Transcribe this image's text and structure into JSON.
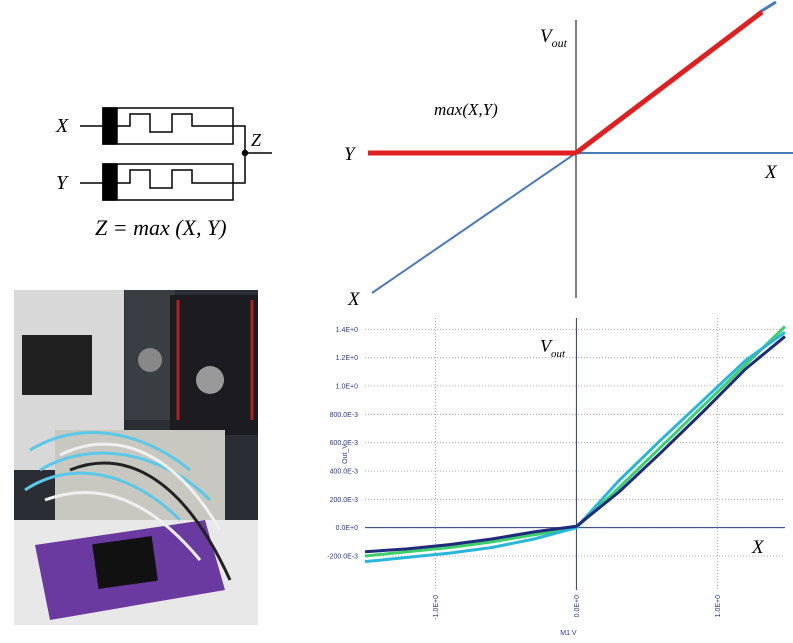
{
  "circuit": {
    "input_x": "X",
    "input_y": "Y",
    "output": "Z",
    "equation": "Z = max (X, Y)"
  },
  "ideal_plot": {
    "y_axis_main": "V",
    "y_axis_sub": "out",
    "function": "max(X,Y)",
    "y_input": "Y",
    "x_axis": "X",
    "x_input": "X"
  },
  "measured_plot": {
    "type": "line",
    "y_label": "Out_V",
    "x_label": "M1 V",
    "axis_main": "V",
    "axis_sub": "out",
    "x_axis": "X",
    "xlim": [
      -1.5,
      1.48
    ],
    "ylim": [
      -0.44,
      1.48
    ],
    "xticks": [
      {
        "value": -1,
        "label": "-1.0E+0"
      },
      {
        "value": 0,
        "label": "0.0E+0"
      },
      {
        "value": 1,
        "label": "1.0E+0"
      }
    ],
    "yticks": [
      {
        "value": 1.4,
        "label": "1.4E+0"
      },
      {
        "value": 1.2,
        "label": "1.2E+0"
      },
      {
        "value": 1,
        "label": "1.0E+0"
      },
      {
        "value": 0.8,
        "label": "800.0E-3"
      },
      {
        "value": 0.6,
        "label": "600.0E-3"
      },
      {
        "value": 0.4,
        "label": "400.0E-3"
      },
      {
        "value": 0.2,
        "label": "200.0E-3"
      },
      {
        "value": 0,
        "label": "0.0E+0"
      },
      {
        "value": -0.2,
        "label": "-200.0E-3"
      }
    ],
    "grid": true,
    "x": [
      -1.5,
      -1.2,
      -0.9,
      -0.6,
      -0.3,
      0,
      0.3,
      0.6,
      0.9,
      1.2,
      1.48
    ],
    "series": [
      {
        "color": "#3ccf6a",
        "values": [
          -0.2,
          -0.17,
          -0.14,
          -0.1,
          -0.05,
          0,
          0.28,
          0.57,
          0.86,
          1.15,
          1.42
        ]
      },
      {
        "color": "#29b6d8",
        "values": [
          -0.24,
          -0.21,
          -0.18,
          -0.14,
          -0.08,
          0,
          0.33,
          0.62,
          0.9,
          1.18,
          1.38
        ]
      },
      {
        "color": "#1f2a7a",
        "values": [
          -0.17,
          -0.15,
          -0.12,
          -0.08,
          -0.03,
          0.01,
          0.25,
          0.53,
          0.82,
          1.12,
          1.35
        ]
      }
    ]
  }
}
